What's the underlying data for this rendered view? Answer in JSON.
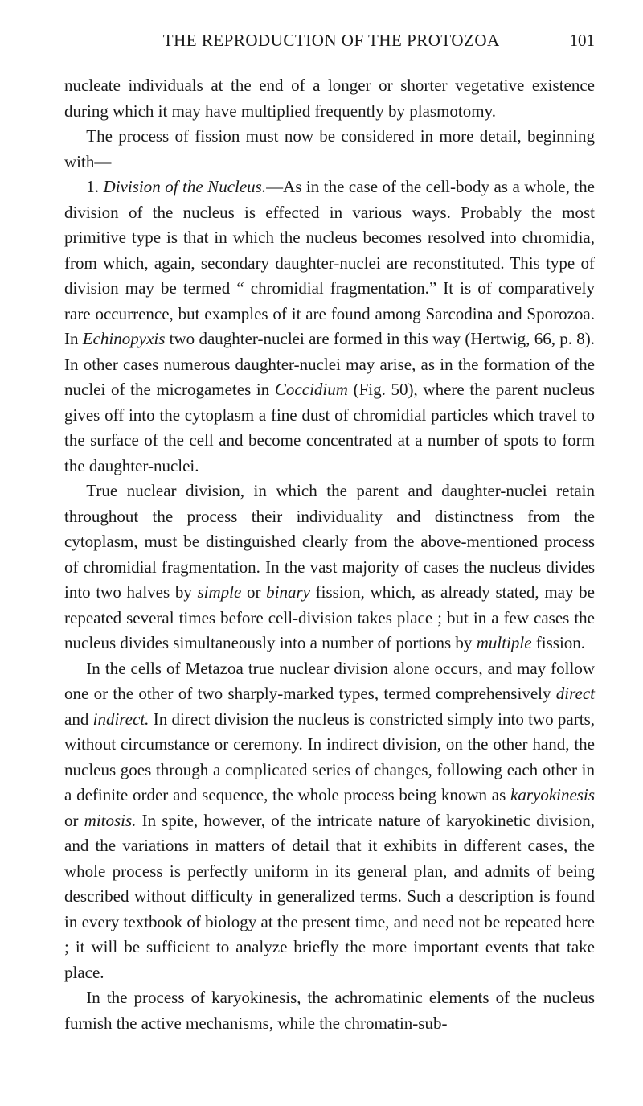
{
  "header": {
    "title": "THE REPRODUCTION OF THE PROTOZOA",
    "page_number": "101"
  },
  "paragraphs": {
    "p1_a": "nucleate individuals at the end of a longer or shorter vegetative existence during which it may have multiplied frequently by plasmotomy.",
    "p2_a": "The process of fission must now be considered in more detail, beginning with—",
    "p3_a": "1. ",
    "p3_i1": "Division of the Nucleus.",
    "p3_b": "—As in the case of the cell-body as a whole, the division of the nucleus is effected in various ways. Probably the most primitive type is that in which the nucleus becomes resolved into chromidia, from which, again, secondary daughter-nuclei are reconstituted. This type of division may be termed “ chromidial fragmentation.” It is of comparatively rare occurrence, but examples of it are found among Sarcodina and Sporozoa. In ",
    "p3_i2": "Echinopyxis",
    "p3_c": " two daughter-nuclei are formed in this way (Hertwig, 66, p. 8). In other cases numerous daughter-nuclei may arise, as in the formation of the nuclei of the microgametes in ",
    "p3_i3": "Coccidium",
    "p3_d": " (Fig. 50), where the parent nucleus gives off into the cytoplasm a fine dust of chromidial particles which travel to the surface of the cell and become concentrated at a number of spots to form the daughter-nuclei.",
    "p4_a": "True nuclear division, in which the parent and daughter-nuclei retain throughout the process their individuality and distinctness from the cytoplasm, must be distinguished clearly from the above-mentioned process of chromidial fragmentation. In the vast majority of cases the nucleus divides into two halves by ",
    "p4_i1": "simple",
    "p4_b": " or ",
    "p4_i2": "binary",
    "p4_c": " fission, which, as already stated, may be repeated several times before cell-division takes place ; but in a few cases the nucleus divides simultaneously into a number of portions by ",
    "p4_i3": "multiple",
    "p4_d": " fission.",
    "p5_a": "In the cells of Metazoa true nuclear division alone occurs, and may follow one or the other of two sharply-marked types, termed comprehensively ",
    "p5_i1": "direct",
    "p5_b": " and ",
    "p5_i2": "indirect.",
    "p5_c": " In direct division the nucleus is constricted simply into two parts, without circumstance or ceremony. In indirect division, on the other hand, the nucleus goes through a complicated series of changes, following each other in a definite order and sequence, the whole process being known as ",
    "p5_i3": "karyokinesis",
    "p5_d": " or ",
    "p5_i4": "mitosis.",
    "p5_e": " In spite, however, of the intricate nature of karyokinetic division, and the variations in matters of detail that it exhibits in different cases, the whole process is perfectly uniform in its general plan, and admits of being described without difficulty in generalized terms. Such a description is found in every textbook of biology at the present time, and need not be repeated here ; it will be sufficient to analyze briefly the more important events that take place.",
    "p6_a": "In the process of karyokinesis, the achromatinic elements of the nucleus furnish the active mechanisms, while the chromatin-sub-"
  }
}
